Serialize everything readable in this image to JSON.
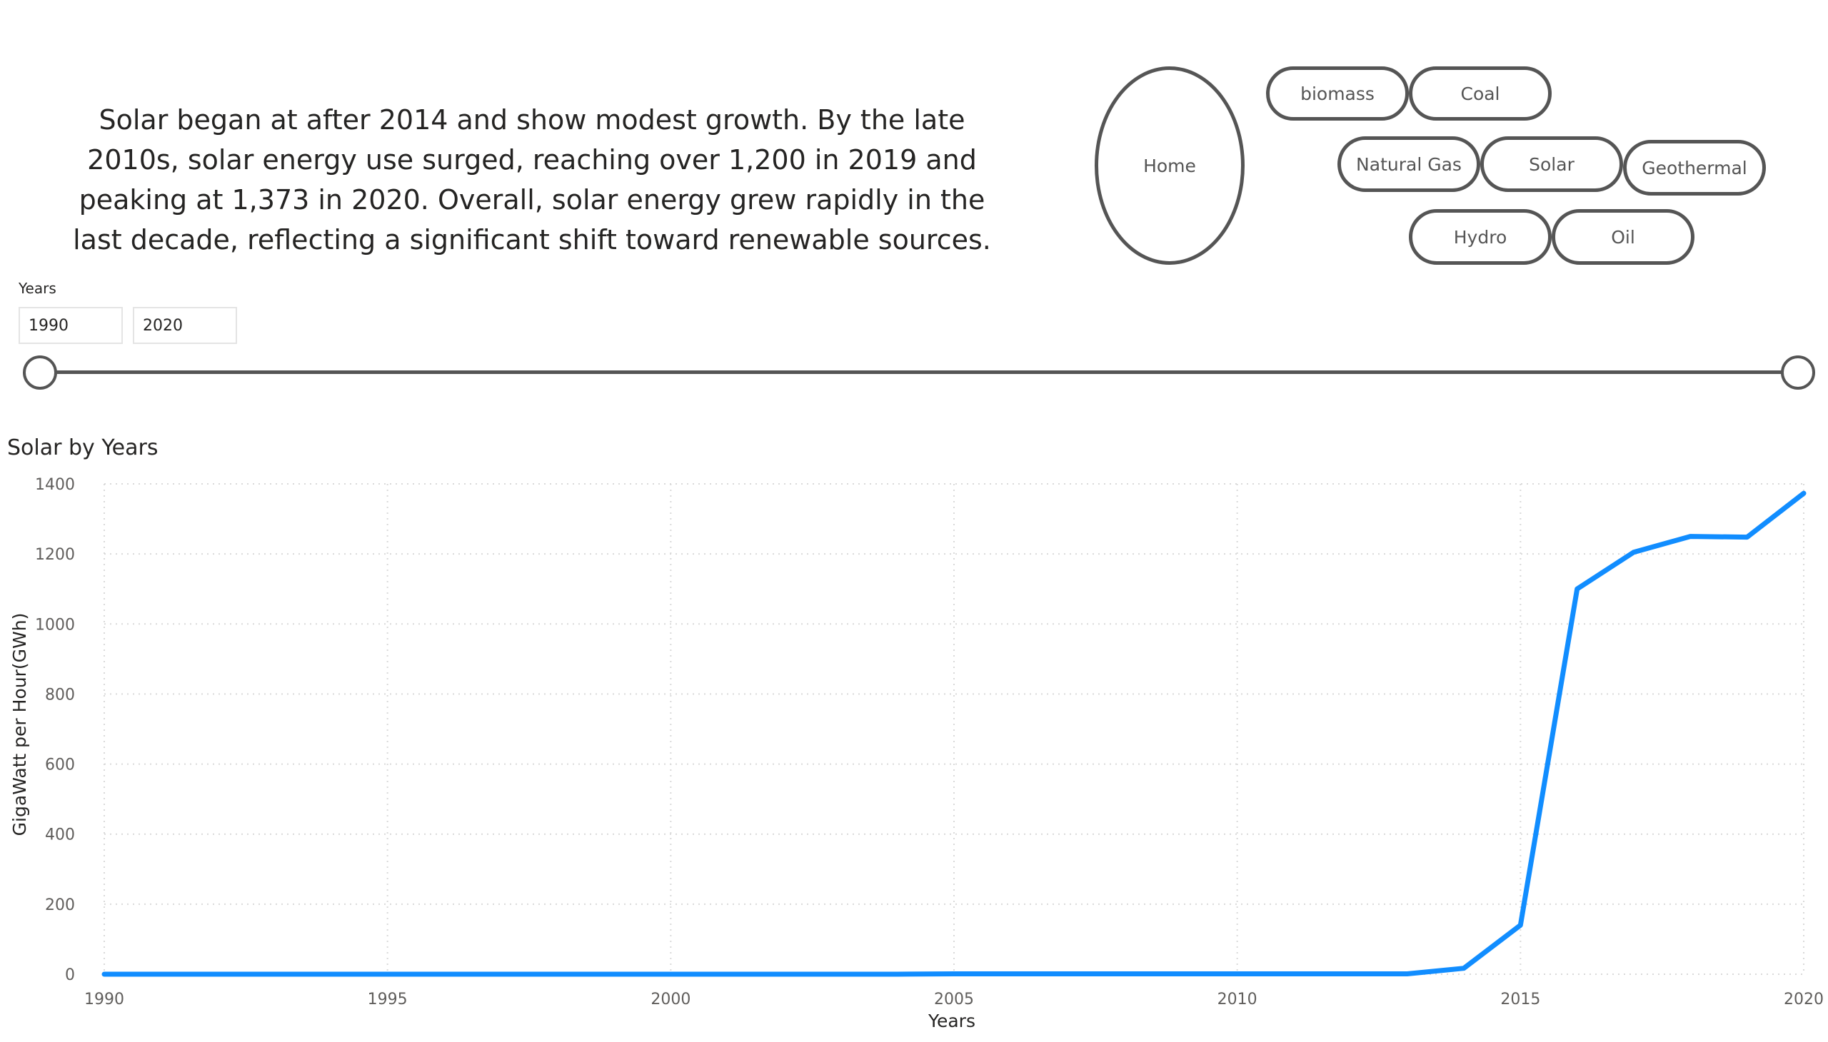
{
  "narrative": "Solar began at after 2014 and show modest growth. By the late 2010s, solar energy use surged, reaching over 1,200 in 2019 and peaking at 1,373 in 2020. Overall, solar energy grew rapidly in the last decade, reflecting a significant shift toward renewable sources.",
  "nav": {
    "home": "Home",
    "biomass": "biomass",
    "coal": "Coal",
    "natural_gas": "Natural Gas",
    "solar": "Solar",
    "geothermal": "Geothermal",
    "hydro": "Hydro",
    "oil": "Oil"
  },
  "slicer": {
    "label": "Years",
    "start": "1990",
    "end": "2020"
  },
  "colors": {
    "line": "#118DFF",
    "button_border": "#555555",
    "grid": "#d9d9d9",
    "text": "#252423"
  },
  "chart_data": {
    "type": "line",
    "title": "Solar by Years",
    "xlabel": "Years",
    "ylabel": "GigaWatt per Hour(GWh)",
    "xlim": [
      1990,
      2020
    ],
    "ylim": [
      0,
      1400
    ],
    "x_ticks": [
      "1990",
      "1995",
      "2000",
      "2005",
      "2010",
      "2015",
      "2020"
    ],
    "y_ticks": [
      "0",
      "200",
      "400",
      "600",
      "800",
      "1000",
      "1200",
      "1400"
    ],
    "grid": true,
    "series": [
      {
        "x": [
          1990,
          1991,
          1992,
          1993,
          1994,
          1995,
          1996,
          1997,
          1998,
          1999,
          2000,
          2001,
          2002,
          2003,
          2004,
          2005,
          2006,
          2007,
          2008,
          2009,
          2010,
          2011,
          2012,
          2013,
          2014,
          2015,
          2016,
          2017,
          2018,
          2019,
          2020
        ],
        "values": [
          0,
          0,
          0,
          0,
          0,
          0,
          0,
          0,
          0,
          0,
          0,
          0,
          0,
          0,
          0,
          1,
          1,
          1,
          1,
          1,
          1,
          1,
          1,
          1,
          17,
          140,
          1100,
          1205,
          1250,
          1248,
          1373
        ]
      }
    ]
  }
}
